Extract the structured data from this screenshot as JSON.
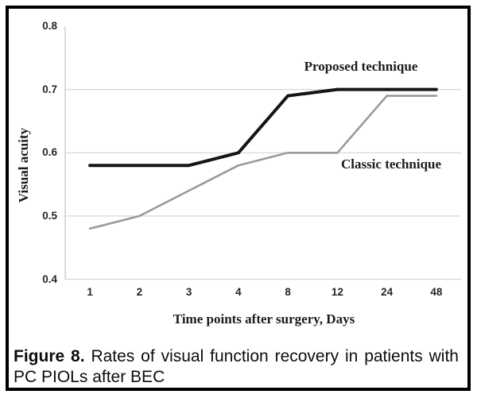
{
  "figure": {
    "caption": {
      "prefix": "Figure 8.",
      "text": " Rates of visual function recovery in patients with PC PIOLs after BEC"
    }
  },
  "chart_data": {
    "type": "line",
    "title": "",
    "x_categories": [
      "1",
      "2",
      "3",
      "4",
      "8",
      "12",
      "24",
      "48"
    ],
    "xlabel": "Time points after surgery, Days",
    "ylabel": "Visual acuity",
    "y_ticks": [
      "0.8",
      "0.7",
      "0.6",
      "0.5",
      "0.4"
    ],
    "ylim": [
      0.4,
      0.8
    ],
    "grid": true,
    "legend_position": "inline-annotations",
    "series": [
      {
        "name": "Proposed technique",
        "color": "#151515",
        "stroke_width": 4,
        "values": [
          0.58,
          0.58,
          0.58,
          0.6,
          0.69,
          0.7,
          0.7,
          0.7
        ]
      },
      {
        "name": "Classic technique",
        "color": "#9a9a9a",
        "stroke_width": 2.6,
        "values": [
          0.48,
          0.5,
          0.54,
          0.58,
          0.6,
          0.6,
          0.69,
          0.69
        ]
      }
    ],
    "annotations": [
      {
        "text": "Proposed technique",
        "x": 454,
        "y": 74
      },
      {
        "text": "Classic technique",
        "x": 492,
        "y": 197
      }
    ],
    "colors": {
      "grid": "#d7d7d7",
      "axis": "#c9c9c9",
      "tick_text": "#262626"
    }
  }
}
